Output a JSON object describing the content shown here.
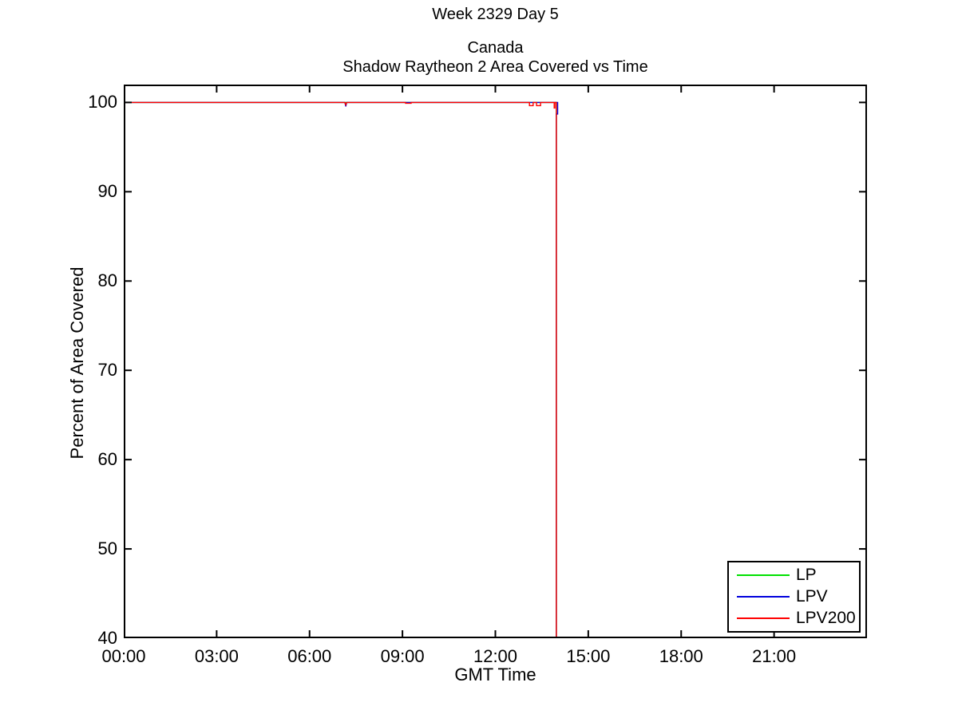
{
  "window": {
    "title": "Week 2329 Day 5"
  },
  "chart_data": {
    "type": "line",
    "suptitle": "Week 2329 Day 5",
    "title": "Canada",
    "subtitle": "Shadow Raytheon 2 Area Covered vs Time",
    "xlabel": "GMT Time",
    "ylabel": "Percent of Area Covered",
    "x_unit": "hours GMT",
    "xlim_hours": [
      0,
      24
    ],
    "ylim": [
      40,
      102
    ],
    "xticks": [
      {
        "hour": 0,
        "label": "00:00"
      },
      {
        "hour": 3,
        "label": "03:00"
      },
      {
        "hour": 6,
        "label": "06:00"
      },
      {
        "hour": 9,
        "label": "09:00"
      },
      {
        "hour": 12,
        "label": "12:00"
      },
      {
        "hour": 15,
        "label": "15:00"
      },
      {
        "hour": 18,
        "label": "18:00"
      },
      {
        "hour": 21,
        "label": "21:00"
      }
    ],
    "yticks": [
      40,
      50,
      60,
      70,
      80,
      90,
      100
    ],
    "grid": false,
    "axis_color": "#000000",
    "background_color": "#ffffff",
    "legend": {
      "position": "lower-right",
      "entries": [
        {
          "label": "LP",
          "color": "#00E000"
        },
        {
          "label": "LPV",
          "color": "#0000DD"
        },
        {
          "label": "LPV200",
          "color": "#FF0000"
        }
      ]
    },
    "series": [
      {
        "name": "LP",
        "color": "#00E000",
        "points": [
          [
            0,
            100
          ],
          [
            13.97,
            100
          ],
          [
            13.97,
            40
          ]
        ]
      },
      {
        "name": "LPV",
        "color": "#0000DD",
        "points": [
          [
            0,
            100
          ],
          [
            7.14,
            100
          ],
          [
            7.17,
            99.55
          ],
          [
            7.2,
            100
          ],
          [
            14.01,
            100
          ],
          [
            14.01,
            98.7
          ],
          [
            13.97,
            98.7
          ],
          [
            13.97,
            40
          ]
        ]
      },
      {
        "name": "LPV200",
        "color": "#FF0000",
        "points": [
          [
            0,
            100
          ],
          [
            7.14,
            100
          ],
          [
            7.17,
            99.73
          ],
          [
            7.2,
            100
          ],
          [
            9.1,
            100
          ],
          [
            9.1,
            99.91
          ],
          [
            9.28,
            99.91
          ],
          [
            9.28,
            100
          ],
          [
            13.1,
            100
          ],
          [
            13.1,
            99.64
          ],
          [
            13.22,
            99.64
          ],
          [
            13.22,
            100
          ],
          [
            13.33,
            100
          ],
          [
            13.33,
            99.64
          ],
          [
            13.46,
            99.64
          ],
          [
            13.46,
            100
          ],
          [
            13.9,
            100
          ],
          [
            13.9,
            99.37
          ],
          [
            13.92,
            99.37
          ],
          [
            13.92,
            100
          ],
          [
            13.97,
            100
          ],
          [
            13.97,
            40
          ]
        ]
      }
    ]
  }
}
